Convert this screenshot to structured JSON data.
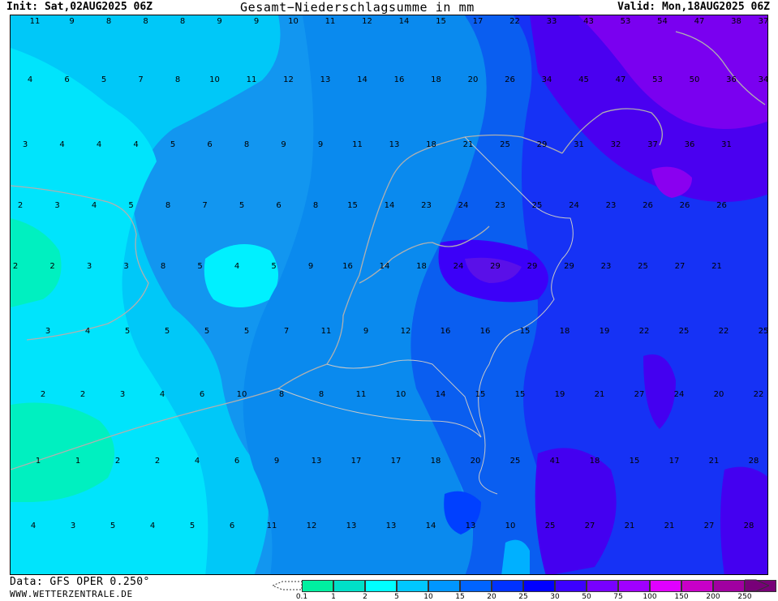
{
  "header": {
    "init": "Init: Sat,02AUG2025 06Z",
    "title": "Gesamt−Niederschlagsumme in mm",
    "valid": "Valid: Mon,18AUG2025 06Z"
  },
  "footer": {
    "data_source": "Data: GFS OPER 0.250°",
    "website": "WWW.WETTERZENTRALE.DE"
  },
  "legend": {
    "thresholds": [
      "0.1",
      "1",
      "2",
      "5",
      "10",
      "15",
      "20",
      "25",
      "30",
      "50",
      "75",
      "100",
      "150",
      "200",
      "250"
    ],
    "colors": [
      "#00f0a0",
      "#00e0c8",
      "#00ffff",
      "#00c8ff",
      "#0096ff",
      "#0064ff",
      "#0032ff",
      "#0000ff",
      "#3c00ff",
      "#7800ff",
      "#a000ff",
      "#e000ff",
      "#c800c8",
      "#a000a0",
      "#780078"
    ]
  },
  "map": {
    "region": "Netherlands and surroundings",
    "rows": [
      [
        "11",
        "9",
        "8",
        "8",
        "8",
        "9",
        "9",
        "10",
        "11",
        "12",
        "14",
        "15",
        "17",
        "22",
        "33",
        "43",
        "53",
        "54",
        "47",
        "38",
        "37"
      ],
      [
        "4",
        "6",
        "5",
        "7",
        "8",
        "10",
        "11",
        "12",
        "13",
        "14",
        "16",
        "18",
        "20",
        "26",
        "34",
        "45",
        "47",
        "53",
        "50",
        "36",
        "34"
      ],
      [
        "3",
        "4",
        "4",
        "4",
        "5",
        "6",
        "8",
        "9",
        "9",
        "11",
        "13",
        "18",
        "21",
        "25",
        "29",
        "31",
        "32",
        "37",
        "36",
        "31"
      ],
      [
        "2",
        "3",
        "4",
        "5",
        "8",
        "7",
        "5",
        "6",
        "8",
        "15",
        "14",
        "23",
        "24",
        "23",
        "25",
        "24",
        "23",
        "26",
        "26",
        "26"
      ],
      [
        "2",
        "2",
        "3",
        "3",
        "8",
        "5",
        "4",
        "5",
        "9",
        "16",
        "14",
        "18",
        "24",
        "29",
        "29",
        "29",
        "23",
        "25",
        "27",
        "21"
      ],
      [
        "3",
        "4",
        "5",
        "5",
        "5",
        "5",
        "7",
        "11",
        "9",
        "12",
        "16",
        "16",
        "15",
        "18",
        "19",
        "22",
        "25",
        "22",
        "25"
      ],
      [
        "2",
        "2",
        "3",
        "4",
        "6",
        "10",
        "8",
        "8",
        "11",
        "10",
        "14",
        "15",
        "15",
        "19",
        "21",
        "27",
        "24",
        "20",
        "22"
      ],
      [
        "1",
        "1",
        "2",
        "2",
        "4",
        "6",
        "9",
        "13",
        "17",
        "17",
        "18",
        "20",
        "25",
        "41",
        "18",
        "15",
        "17",
        "21",
        "28"
      ],
      [
        "4",
        "3",
        "5",
        "4",
        "5",
        "6",
        "11",
        "12",
        "13",
        "13",
        "14",
        "13",
        "10",
        "25",
        "27",
        "21",
        "21",
        "27",
        "28"
      ]
    ]
  }
}
